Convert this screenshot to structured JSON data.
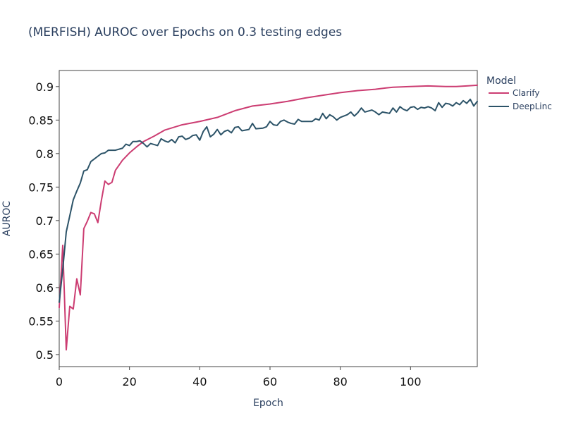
{
  "chart_data": {
    "type": "line",
    "title": "(MERFISH) AUROC over Epochs on 0.3 testing edges",
    "xlabel": "Epoch",
    "ylabel": "AUROC",
    "xlim": [
      0,
      119
    ],
    "ylim": [
      0.482,
      0.924
    ],
    "x_ticks": [
      0,
      20,
      40,
      60,
      80,
      100
    ],
    "x_tick_labels": [
      "0",
      "20",
      "40",
      "60",
      "80",
      "100"
    ],
    "y_ticks": [
      0.5,
      0.55,
      0.6,
      0.65,
      0.7,
      0.75,
      0.8,
      0.85,
      0.9
    ],
    "y_tick_labels": [
      "0.5",
      "0.55",
      "0.6",
      "0.65",
      "0.7",
      "0.75",
      "0.8",
      "0.85",
      "0.9"
    ],
    "grid": false,
    "legend": {
      "title": "Model",
      "placement": "right"
    },
    "series": [
      {
        "name": "Clarify",
        "color": "#cc3d72",
        "anchors": [
          [
            0,
            0.57
          ],
          [
            1,
            0.663
          ],
          [
            2,
            0.507
          ],
          [
            3,
            0.572
          ],
          [
            4,
            0.568
          ],
          [
            5,
            0.613
          ],
          [
            6,
            0.589
          ],
          [
            7,
            0.688
          ],
          [
            8,
            0.699
          ],
          [
            9,
            0.712
          ],
          [
            10,
            0.71
          ],
          [
            11,
            0.697
          ],
          [
            12,
            0.73
          ],
          [
            13,
            0.759
          ],
          [
            14,
            0.754
          ],
          [
            15,
            0.757
          ],
          [
            16,
            0.775
          ],
          [
            18,
            0.79
          ],
          [
            20,
            0.801
          ],
          [
            22,
            0.81
          ],
          [
            24,
            0.818
          ],
          [
            27,
            0.826
          ],
          [
            30,
            0.835
          ],
          [
            35,
            0.843
          ],
          [
            40,
            0.848
          ],
          [
            45,
            0.854
          ],
          [
            50,
            0.864
          ],
          [
            55,
            0.871
          ],
          [
            60,
            0.874
          ],
          [
            65,
            0.878
          ],
          [
            70,
            0.883
          ],
          [
            75,
            0.887
          ],
          [
            80,
            0.891
          ],
          [
            85,
            0.894
          ],
          [
            90,
            0.896
          ],
          [
            93,
            0.898
          ],
          [
            95,
            0.899
          ],
          [
            100,
            0.9
          ],
          [
            105,
            0.901
          ],
          [
            110,
            0.9
          ],
          [
            113,
            0.9
          ],
          [
            116,
            0.901
          ],
          [
            119,
            0.902
          ]
        ]
      },
      {
        "name": "DeepLinc",
        "color": "#2c5368",
        "anchors": [
          [
            0,
            0.578
          ],
          [
            1,
            0.627
          ],
          [
            2,
            0.683
          ],
          [
            3,
            0.707
          ],
          [
            4,
            0.731
          ],
          [
            5,
            0.744
          ],
          [
            6,
            0.756
          ],
          [
            7,
            0.774
          ],
          [
            8,
            0.776
          ],
          [
            9,
            0.788
          ],
          [
            10,
            0.792
          ],
          [
            11,
            0.796
          ],
          [
            12,
            0.8
          ],
          [
            13,
            0.801
          ],
          [
            14,
            0.805
          ],
          [
            16,
            0.805
          ],
          [
            18,
            0.808
          ],
          [
            19,
            0.814
          ],
          [
            20,
            0.812
          ],
          [
            21,
            0.818
          ],
          [
            22,
            0.818
          ],
          [
            23,
            0.819
          ],
          [
            24,
            0.815
          ],
          [
            25,
            0.81
          ],
          [
            26,
            0.815
          ],
          [
            28,
            0.812
          ],
          [
            29,
            0.822
          ],
          [
            30,
            0.819
          ],
          [
            31,
            0.817
          ],
          [
            32,
            0.821
          ],
          [
            33,
            0.816
          ],
          [
            34,
            0.825
          ],
          [
            35,
            0.826
          ],
          [
            36,
            0.821
          ],
          [
            37,
            0.823
          ],
          [
            38,
            0.827
          ],
          [
            39,
            0.828
          ],
          [
            40,
            0.82
          ],
          [
            41,
            0.833
          ],
          [
            42,
            0.84
          ],
          [
            43,
            0.825
          ],
          [
            44,
            0.829
          ],
          [
            45,
            0.836
          ],
          [
            46,
            0.828
          ],
          [
            47,
            0.833
          ],
          [
            48,
            0.835
          ],
          [
            49,
            0.831
          ],
          [
            50,
            0.839
          ],
          [
            51,
            0.84
          ],
          [
            52,
            0.834
          ],
          [
            54,
            0.836
          ],
          [
            55,
            0.845
          ],
          [
            56,
            0.837
          ],
          [
            58,
            0.838
          ],
          [
            59,
            0.84
          ],
          [
            60,
            0.848
          ],
          [
            61,
            0.843
          ],
          [
            62,
            0.842
          ],
          [
            63,
            0.848
          ],
          [
            64,
            0.85
          ],
          [
            65,
            0.847
          ],
          [
            66,
            0.845
          ],
          [
            67,
            0.844
          ],
          [
            68,
            0.851
          ],
          [
            69,
            0.848
          ],
          [
            72,
            0.848
          ],
          [
            73,
            0.852
          ],
          [
            74,
            0.85
          ],
          [
            75,
            0.86
          ],
          [
            76,
            0.852
          ],
          [
            77,
            0.858
          ],
          [
            78,
            0.855
          ],
          [
            79,
            0.85
          ],
          [
            80,
            0.854
          ],
          [
            82,
            0.858
          ],
          [
            83,
            0.862
          ],
          [
            84,
            0.856
          ],
          [
            85,
            0.861
          ],
          [
            86,
            0.868
          ],
          [
            87,
            0.862
          ],
          [
            89,
            0.865
          ],
          [
            90,
            0.862
          ],
          [
            91,
            0.858
          ],
          [
            92,
            0.862
          ],
          [
            94,
            0.86
          ],
          [
            95,
            0.868
          ],
          [
            96,
            0.862
          ],
          [
            97,
            0.87
          ],
          [
            98,
            0.866
          ],
          [
            99,
            0.864
          ],
          [
            100,
            0.869
          ],
          [
            101,
            0.87
          ],
          [
            102,
            0.866
          ],
          [
            103,
            0.869
          ],
          [
            104,
            0.868
          ],
          [
            105,
            0.87
          ],
          [
            106,
            0.868
          ],
          [
            107,
            0.864
          ],
          [
            108,
            0.876
          ],
          [
            109,
            0.869
          ],
          [
            110,
            0.875
          ],
          [
            111,
            0.874
          ],
          [
            112,
            0.871
          ],
          [
            113,
            0.876
          ],
          [
            114,
            0.873
          ],
          [
            115,
            0.879
          ],
          [
            116,
            0.875
          ],
          [
            117,
            0.881
          ],
          [
            118,
            0.871
          ],
          [
            119,
            0.878
          ]
        ]
      }
    ]
  }
}
